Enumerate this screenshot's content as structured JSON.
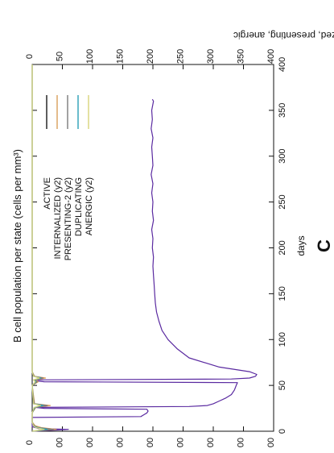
{
  "chart_data": {
    "type": "line",
    "orientation": "rotated-90-clockwise",
    "title": "B cell population  per state (cells per mm³)",
    "xlabel": "days",
    "y2label": "internalized, presenting, anergic",
    "panel_label": "C",
    "x_ticks": [
      "0",
      "50",
      "100",
      "150",
      "200",
      "250",
      "300",
      "350",
      "400"
    ],
    "y_ticks": [
      "0",
      "00",
      "00",
      "00",
      "00",
      "00",
      "00",
      "00",
      "00"
    ],
    "y2_ticks": [
      "0",
      "50",
      "100",
      "150",
      "200",
      "250",
      "300",
      "350",
      "400"
    ],
    "xlim": [
      0,
      400
    ],
    "y2lim": [
      0,
      400
    ],
    "legend_position": "top-right",
    "legend": [
      {
        "name": "ACTIVE",
        "color": "#1a1a1a"
      },
      {
        "name": "INTERNALIZED (y2)",
        "color": "#d9a05a"
      },
      {
        "name": "PRESENTING-2 (y2)",
        "color": "#7a7a7a"
      },
      {
        "name": "DUPLICATING",
        "color": "#2a9fb5"
      },
      {
        "name": "ANERGIC (y2)",
        "color": "#d8d47a"
      }
    ],
    "series": [
      {
        "name": "ACTIVE",
        "color": "#5a2aa0",
        "x": [
          0,
          1,
          2,
          3,
          5,
          8,
          10,
          12,
          15,
          16,
          18,
          20,
          22,
          24,
          25,
          26,
          27,
          28,
          30,
          33,
          36,
          40,
          45,
          50,
          53,
          54,
          55,
          56,
          57,
          58,
          60,
          62,
          65,
          70,
          80,
          90,
          100,
          110,
          120,
          130,
          140,
          150,
          160,
          170,
          180,
          190,
          200,
          210,
          220,
          230,
          240,
          250,
          260,
          270,
          280,
          290,
          300,
          310,
          320,
          330,
          340,
          350,
          360,
          362
        ],
        "y": [
          0,
          30,
          60,
          10,
          0,
          0,
          0,
          0,
          0,
          180,
          185,
          190,
          192,
          190,
          20,
          5,
          260,
          290,
          300,
          310,
          320,
          330,
          335,
          338,
          340,
          20,
          5,
          5,
          330,
          360,
          370,
          372,
          360,
          310,
          260,
          240,
          225,
          215,
          210,
          206,
          204,
          203,
          202,
          201,
          200,
          201,
          199,
          200,
          198,
          201,
          199,
          200,
          198,
          200,
          197,
          200,
          199,
          198,
          200,
          197,
          199,
          198,
          201,
          199
        ]
      },
      {
        "name": "INTERNALIZED (y2)",
        "color": "#d9a05a",
        "x": [
          0,
          2,
          4,
          6,
          10,
          20,
          26,
          28,
          30,
          50,
          54,
          56,
          58,
          60,
          65,
          80,
          400
        ],
        "y": [
          0,
          40,
          15,
          5,
          0,
          0,
          6,
          30,
          4,
          0,
          10,
          5,
          22,
          4,
          0,
          0,
          0
        ]
      },
      {
        "name": "PRESENTING-2 (y2)",
        "color": "#7a7a7a",
        "x": [
          0,
          2,
          4,
          6,
          10,
          20,
          26,
          28,
          30,
          50,
          54,
          56,
          58,
          60,
          65,
          80,
          400
        ],
        "y": [
          0,
          35,
          10,
          3,
          0,
          0,
          5,
          25,
          3,
          0,
          8,
          4,
          18,
          3,
          0,
          0,
          0
        ]
      },
      {
        "name": "DUPLICATING",
        "color": "#2a9fb5",
        "x": [
          0,
          2,
          4,
          6,
          10,
          20,
          26,
          28,
          30,
          50,
          54,
          56,
          58,
          60,
          65,
          80,
          400
        ],
        "y": [
          0,
          25,
          8,
          2,
          0,
          0,
          4,
          18,
          2,
          0,
          6,
          3,
          14,
          2,
          0,
          0,
          0
        ]
      },
      {
        "name": "ANERGIC (y2)",
        "color": "#d8d47a",
        "x": [
          0,
          2,
          4,
          6,
          10,
          20,
          26,
          28,
          30,
          50,
          54,
          56,
          58,
          60,
          65,
          80,
          400
        ],
        "y": [
          0,
          20,
          6,
          2,
          0,
          0,
          3,
          14,
          2,
          0,
          5,
          2,
          12,
          2,
          0,
          0,
          0
        ]
      }
    ]
  }
}
